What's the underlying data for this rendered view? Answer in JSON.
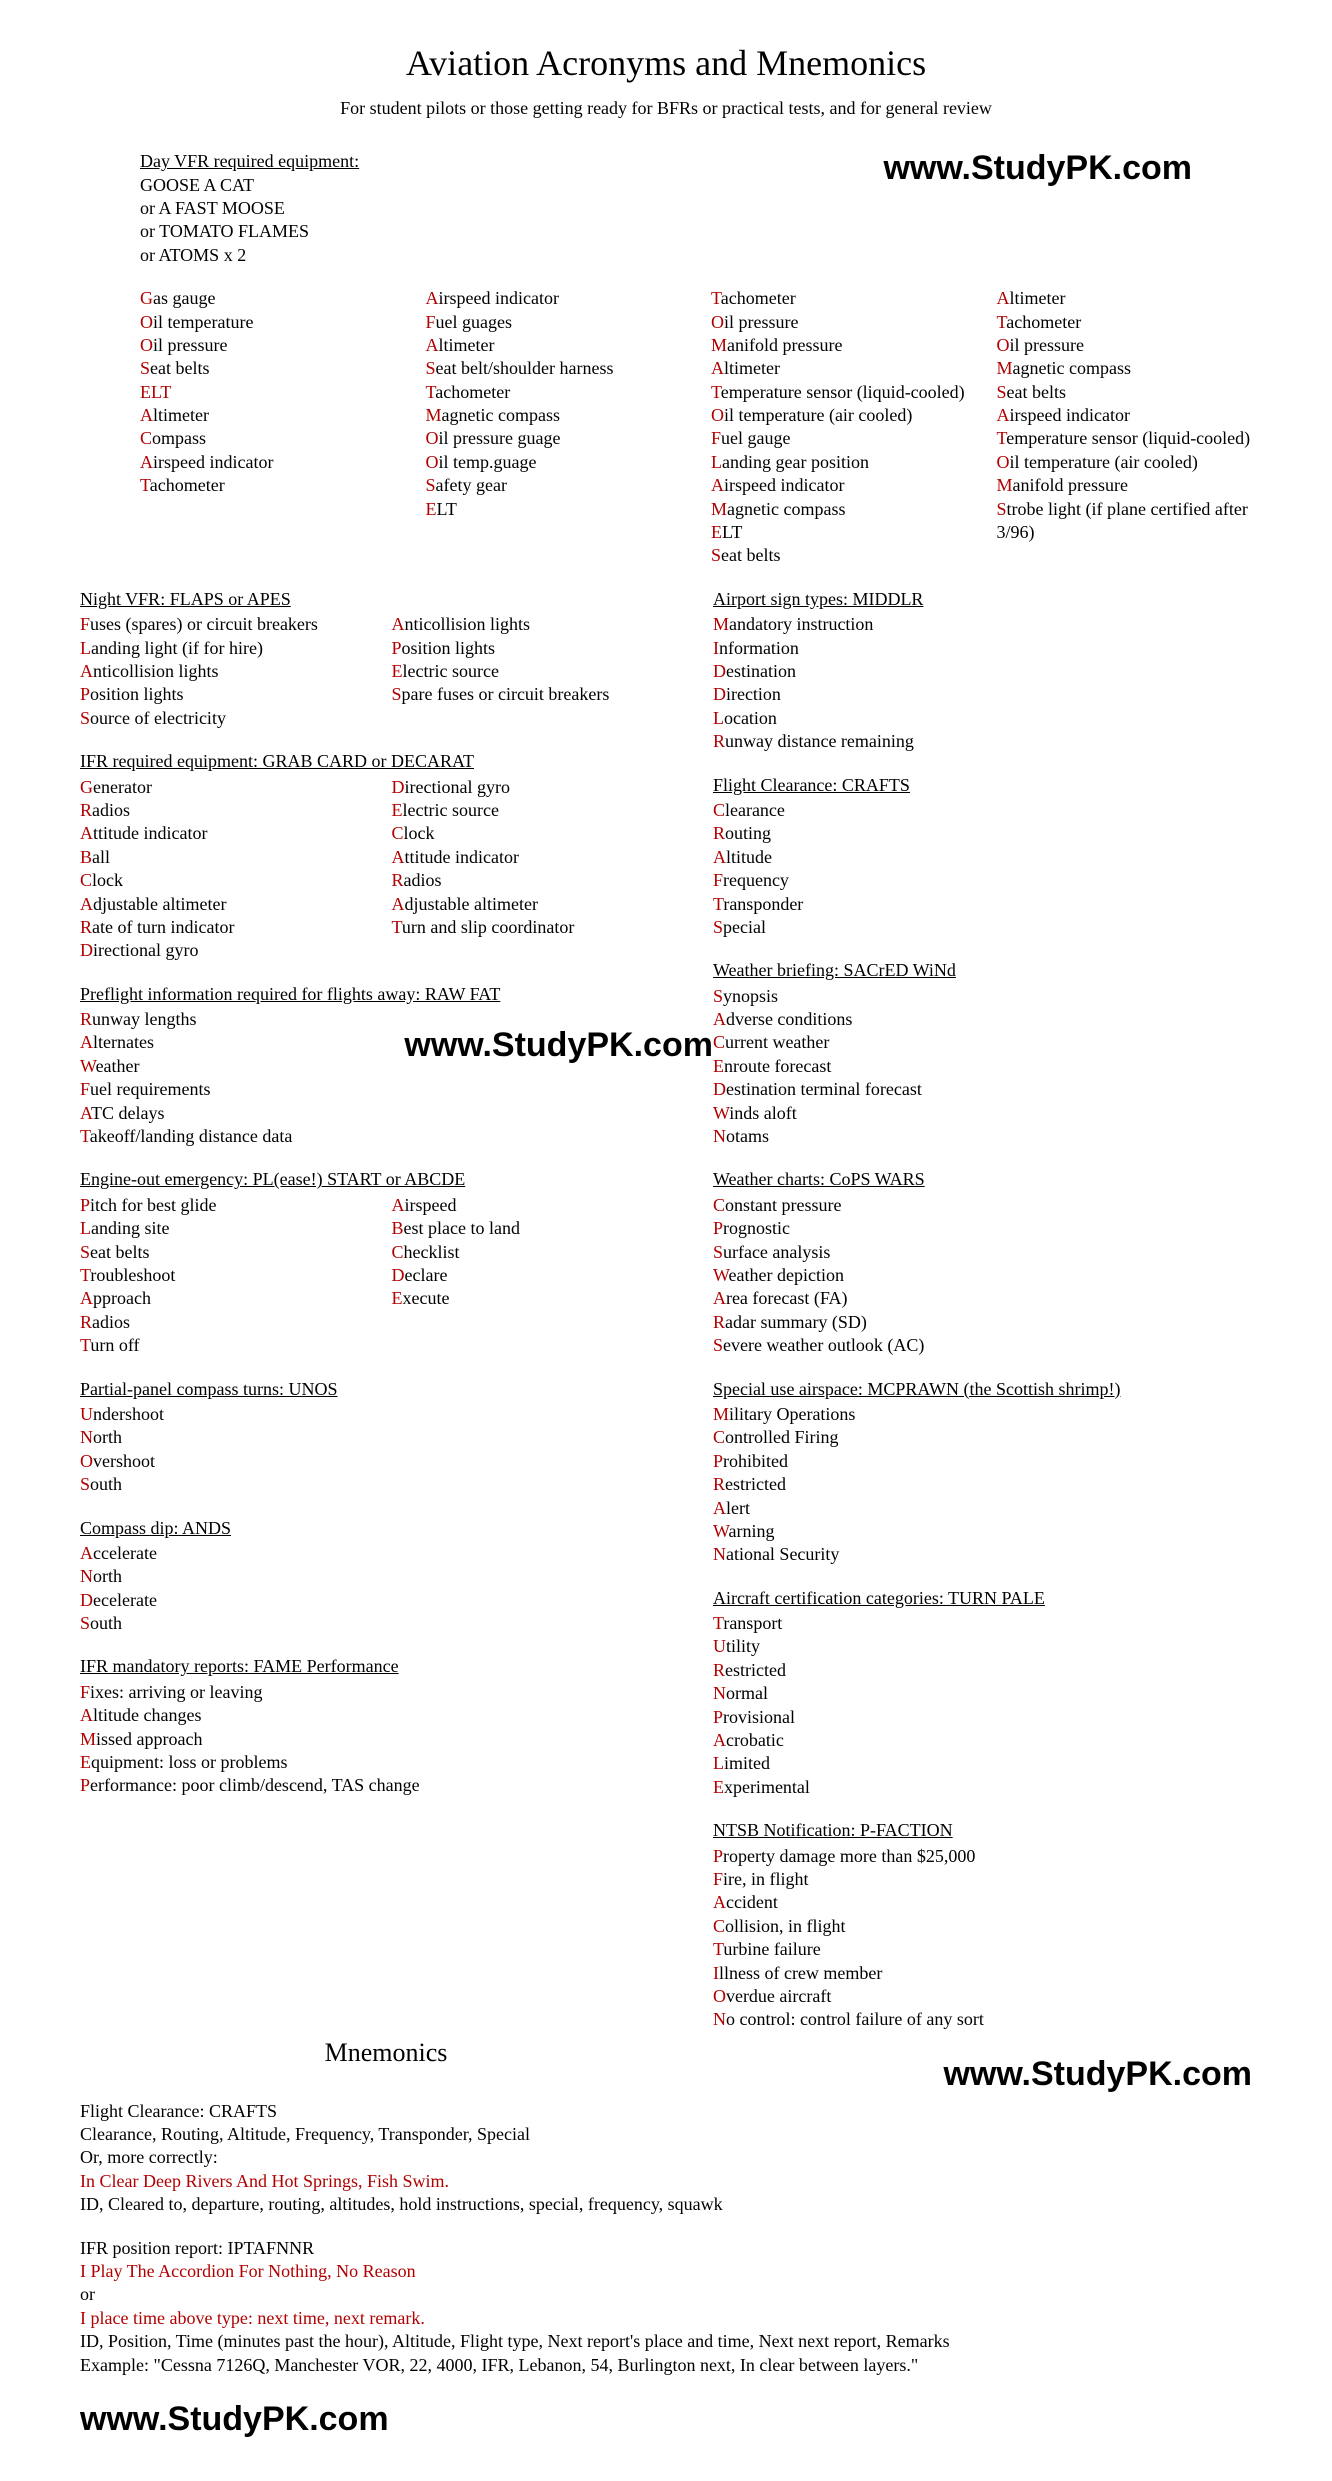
{
  "title": "Aviation Acronyms and Mnemonics",
  "subtitle": "For student pilots or those getting ready for BFRs or practical tests, and for general review",
  "watermark": "www.StudyPK.com",
  "dayvfr": {
    "title": "Day VFR required equipment:",
    "lines": [
      "GOOSE A CAT",
      "or A FAST MOOSE",
      "or TOMATO FLAMES",
      "or ATOMS x 2"
    ]
  },
  "colA": [
    [
      "G",
      "as gauge"
    ],
    [
      "O",
      "il temperature"
    ],
    [
      "O",
      "il pressure"
    ],
    [
      "S",
      "eat belts"
    ],
    [
      "ELT",
      ""
    ],
    [
      "A",
      "ltimeter"
    ],
    [
      "C",
      "ompass"
    ],
    [
      "A",
      "irspeed indicator"
    ],
    [
      "T",
      "achometer"
    ]
  ],
  "colB": [
    [
      "A",
      "irspeed indicator"
    ],
    [
      "F",
      "uel guages"
    ],
    [
      "A",
      "ltimeter"
    ],
    [
      "S",
      "eat belt/shoulder harness"
    ],
    [
      "T",
      "achometer"
    ],
    [
      "M",
      "agnetic compass"
    ],
    [
      "O",
      "il pressure guage"
    ],
    [
      "O",
      "il temp.guage"
    ],
    [
      "S",
      "afety gear"
    ],
    [
      "E",
      "LT"
    ]
  ],
  "colC": [
    [
      "T",
      "achometer"
    ],
    [
      "O",
      "il pressure"
    ],
    [
      "M",
      "anifold pressure"
    ],
    [
      "A",
      "ltimeter"
    ],
    [
      "T",
      "emperature sensor (liquid-cooled)"
    ],
    [
      "O",
      "il temperature (air cooled)"
    ],
    [
      "F",
      "uel gauge"
    ],
    [
      "L",
      "anding gear position"
    ],
    [
      "A",
      "irspeed indicator"
    ],
    [
      "M",
      "agnetic compass"
    ],
    [
      "E",
      "LT"
    ],
    [
      "S",
      "eat belts"
    ]
  ],
  "colD": [
    [
      "A",
      "ltimeter"
    ],
    [
      "T",
      "achometer"
    ],
    [
      "O",
      "il pressure"
    ],
    [
      "M",
      "agnetic compass"
    ],
    [
      "S",
      "eat belts"
    ],
    [
      "A",
      "irspeed indicator"
    ],
    [
      "T",
      "emperature sensor (liquid-cooled)"
    ],
    [
      "O",
      "il temperature (air cooled)"
    ],
    [
      "M",
      "anifold pressure"
    ],
    [
      "S",
      "trobe light (if plane certified after 3/96)"
    ]
  ],
  "nightvfr": {
    "title": "Night VFR: FLAPS or APES",
    "left": [
      [
        "F",
        "uses (spares) or circuit breakers"
      ],
      [
        "L",
        "anding light (if for hire)"
      ],
      [
        "A",
        "nticollision lights"
      ],
      [
        "P",
        "osition lights"
      ],
      [
        "S",
        "ource of electricity"
      ]
    ],
    "right": [
      [
        "A",
        "nticollision lights"
      ],
      [
        "P",
        "osition lights"
      ],
      [
        "E",
        "lectric source"
      ],
      [
        "S",
        "pare fuses or circuit breakers"
      ]
    ]
  },
  "ifreq": {
    "title": "IFR required equipment: GRAB CARD or DECARAT",
    "left": [
      [
        "G",
        "enerator"
      ],
      [
        "R",
        "adios"
      ],
      [
        "A",
        "ttitude indicator"
      ],
      [
        "B",
        "all"
      ],
      [
        "C",
        "lock"
      ],
      [
        "A",
        "djustable altimeter"
      ],
      [
        "R",
        "ate of turn indicator"
      ],
      [
        "D",
        "irectional gyro"
      ]
    ],
    "right": [
      [
        "D",
        "irectional gyro"
      ],
      [
        "E",
        "lectric source"
      ],
      [
        "C",
        "lock"
      ],
      [
        "A",
        "ttitude indicator"
      ],
      [
        "R",
        "adios"
      ],
      [
        "A",
        "djustable altimeter"
      ],
      [
        "T",
        "urn and slip coordinator"
      ]
    ]
  },
  "preflight": {
    "title": "Preflight information required for flights away: RAW FAT",
    "items": [
      [
        "R",
        "unway lengths"
      ],
      [
        "A",
        "lternates"
      ],
      [
        "W",
        "eather"
      ],
      [
        "F",
        "uel requirements"
      ],
      [
        "A",
        "TC delays"
      ],
      [
        "T",
        "akeoff/landing distance data"
      ]
    ]
  },
  "engineout": {
    "title": "Engine-out emergency: PL(ease!) START or ABCDE",
    "left": [
      [
        "P",
        "itch for best glide"
      ],
      [
        "L",
        "anding site"
      ],
      [
        "S",
        "eat belts"
      ],
      [
        "T",
        "roubleshoot"
      ],
      [
        "A",
        "pproach"
      ],
      [
        "R",
        "adios"
      ],
      [
        "T",
        "urn off"
      ]
    ],
    "right": [
      [
        "A",
        "irspeed"
      ],
      [
        "B",
        "est place to land"
      ],
      [
        "C",
        "hecklist"
      ],
      [
        "D",
        "eclare"
      ],
      [
        "E",
        "xecute"
      ]
    ]
  },
  "unos": {
    "title": "Partial-panel compass turns: UNOS",
    "items": [
      [
        "U",
        "ndershoot"
      ],
      [
        "N",
        "orth"
      ],
      [
        "O",
        "vershoot"
      ],
      [
        "S",
        "outh"
      ]
    ]
  },
  "ands": {
    "title": "Compass dip: ANDS",
    "items": [
      [
        "A",
        "ccelerate"
      ],
      [
        "N",
        "orth"
      ],
      [
        "D",
        "ecelerate"
      ],
      [
        "S",
        "outh"
      ]
    ]
  },
  "fame": {
    "title": "IFR mandatory reports: FAME Performance",
    "items": [
      [
        "F",
        "ixes: arriving or leaving"
      ],
      [
        "A",
        "ltitude changes"
      ],
      [
        "M",
        "issed approach"
      ],
      [
        "E",
        "quipment: loss or problems"
      ],
      [
        "P",
        "erformance: poor climb/descend, TAS change"
      ]
    ]
  },
  "middlr": {
    "title": "Airport sign types: MIDDLR",
    "items": [
      [
        "M",
        "andatory instruction"
      ],
      [
        "I",
        "nformation"
      ],
      [
        "D",
        "estination"
      ],
      [
        "D",
        "irection"
      ],
      [
        "L",
        "ocation"
      ],
      [
        "R",
        "unway distance remaining"
      ]
    ]
  },
  "crafts": {
    "title": "Flight Clearance: CRAFTS ",
    "items": [
      [
        "C",
        "learance"
      ],
      [
        "R",
        "outing"
      ],
      [
        "A",
        "ltitude"
      ],
      [
        "F",
        "requency"
      ],
      [
        "T",
        "ransponder"
      ],
      [
        "S",
        "pecial"
      ]
    ]
  },
  "sacred": {
    "title": "Weather briefing: SACrED WiNd",
    "items": [
      [
        "S",
        "ynopsis"
      ],
      [
        "A",
        "dverse conditions"
      ],
      [
        "C",
        "urrent weather"
      ],
      [
        "E",
        "nroute forecast"
      ],
      [
        "D",
        "estination terminal forecast"
      ],
      [
        "W",
        "inds aloft"
      ],
      [
        "N",
        "otams"
      ]
    ]
  },
  "cops": {
    "title": "Weather charts: CoPS WARS",
    "items": [
      [
        "C",
        "onstant pressure"
      ],
      [
        "P",
        "rognostic"
      ],
      [
        "S",
        "urface analysis"
      ],
      [
        "W",
        "eather depiction"
      ],
      [
        "A",
        "rea forecast (FA)"
      ],
      [
        "R",
        "adar summary (SD)"
      ],
      [
        "S",
        "evere weather outlook (AC)"
      ]
    ]
  },
  "mcprawn": {
    "title": "Special use airspace: MCPRAWN (the Scottish shrimp!)",
    "items": [
      [
        "M",
        "ilitary Operations"
      ],
      [
        "C",
        "ontrolled Firing"
      ],
      [
        "P",
        "rohibited"
      ],
      [
        "R",
        "estricted"
      ],
      [
        "A",
        "lert"
      ],
      [
        "W",
        "arning"
      ],
      [
        "N",
        "ational Security"
      ]
    ]
  },
  "turnpale": {
    "title": "Aircraft certification categories: TURN PALE",
    "items": [
      [
        "T",
        "ransport"
      ],
      [
        "U",
        "tility"
      ],
      [
        "R",
        "estricted"
      ],
      [
        "N",
        "ormal"
      ],
      [
        "P",
        "rovisional"
      ],
      [
        "A",
        "crobatic"
      ],
      [
        "L",
        "imited"
      ],
      [
        "E",
        "xperimental"
      ]
    ]
  },
  "pfaction": {
    "title": "NTSB Notification: P-FACTION",
    "items": [
      [
        "P",
        "roperty damage more than $25,000"
      ],
      [
        "F",
        "ire, in flight"
      ],
      [
        "A",
        "ccident"
      ],
      [
        "C",
        "ollision, in flight"
      ],
      [
        "T",
        "urbine failure"
      ],
      [
        "I",
        "llness of crew member"
      ],
      [
        "O",
        "verdue aircraft"
      ],
      [
        "N",
        "o control: control failure of any sort"
      ]
    ]
  },
  "mnemTitle": "Mnemonics",
  "mnem1": {
    "l1": "Flight Clearance: CRAFTS",
    "l2": "Clearance, Routing, Altitude, Frequency, Transponder, Special",
    "l3": "Or, more correctly:",
    "l4": "In Clear Deep Rivers And Hot Springs, Fish Swim.",
    "l5": "ID, Cleared to, departure, routing, altitudes, hold instructions, special, frequency, squawk"
  },
  "mnem2": {
    "l1": "IFR position report: IPTAFNNR",
    "l2": "I Play The Accordion For Nothing, No Reason",
    "l3": "or",
    "l4": "I place time above type: next time, next remark.",
    "l5": "ID, Position, Time (minutes past the hour), Altitude, Flight type, Next report's place and time, Next next report, Remarks",
    "l6": "Example: \"Cessna 7126Q, Manchester VOR, 22, 4000, IFR, Lebanon, 54, Burlington next, In clear between layers.\""
  }
}
